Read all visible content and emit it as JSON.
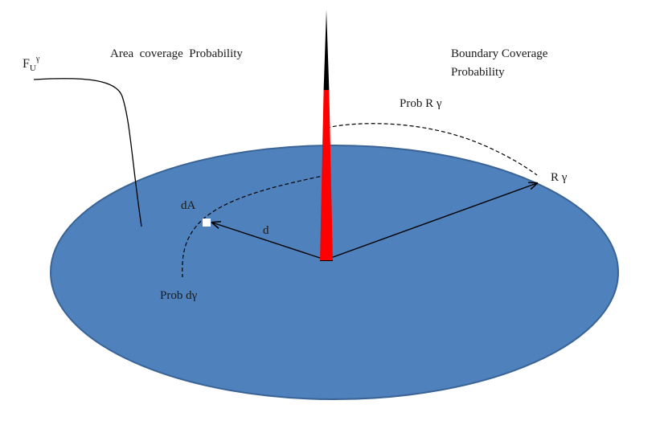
{
  "labels": {
    "f_u_main": "F",
    "f_u_sub": "U",
    "f_u_sup": "γ",
    "area_coverage": "Area  coverage  Probability",
    "boundary_line1": "Boundary Coverage",
    "boundary_line2": "Probability",
    "prob_r": "Prob R γ",
    "r_gamma": "R γ",
    "d_a": "dA",
    "d": "d",
    "prob_d": "Prob dγ"
  },
  "colors": {
    "disk_fill": "#4F81BD",
    "disk_stroke": "#3A6495",
    "antenna_red": "#FF0000",
    "antenna_tip": "#000000",
    "line": "#000000",
    "area_element": "#FFFFFF"
  }
}
